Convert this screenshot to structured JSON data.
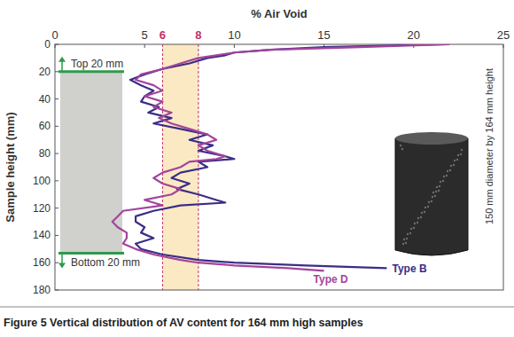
{
  "chart_data": {
    "type": "line",
    "orientation": "horizontal",
    "x_label": "Sample height (mm)",
    "y_label": "% Air Void",
    "caption": "Figure 5 Vertical distribution of AV content for 164 mm high samples",
    "x": [
      0,
      2,
      4,
      6,
      8,
      10,
      14,
      18,
      22,
      26,
      30,
      34,
      38,
      42,
      46,
      50,
      54,
      58,
      62,
      66,
      70,
      74,
      78,
      82,
      84,
      86,
      90,
      94,
      98,
      102,
      106,
      110,
      114,
      116,
      118,
      122,
      126,
      130,
      134,
      138,
      142,
      146,
      150,
      154,
      158,
      160,
      162,
      164,
      166
    ],
    "series": [
      {
        "name": "Type B",
        "color": "#3b2d86",
        "values": [
          21.7,
          15,
          12,
          10,
          9.5,
          8.5,
          7.5,
          6,
          5,
          4.2,
          4.8,
          5.5,
          5,
          4.8,
          5.8,
          5.2,
          6.5,
          5.5,
          7,
          8.5,
          7.5,
          8.8,
          8,
          9.5,
          10,
          8,
          8.5,
          7,
          6.5,
          7.5,
          6.8,
          8,
          9,
          9.5,
          7,
          5.5,
          4.5,
          4.5,
          5,
          4.8,
          5.5,
          4.5,
          4.8,
          6,
          8,
          10,
          14,
          18.5,
          null
        ]
      },
      {
        "name": "Type D",
        "color": "#a3449c",
        "values": [
          22,
          17,
          12,
          10,
          9,
          8,
          7,
          6,
          4.8,
          4.5,
          5.5,
          6,
          5,
          6,
          5.5,
          6.5,
          5.8,
          6.5,
          7.5,
          8.5,
          9,
          8,
          8.5,
          9.5,
          9,
          7.5,
          7,
          6,
          5.5,
          6,
          7,
          6.5,
          5,
          5.5,
          6,
          3.8,
          3.5,
          3.2,
          3.5,
          4,
          4,
          3.8,
          4.5,
          5.5,
          7,
          8,
          10,
          13,
          15
        ]
      }
    ],
    "xlim": [
      0,
      180
    ],
    "xticks": [
      0,
      20,
      40,
      60,
      80,
      100,
      120,
      140,
      160,
      180
    ],
    "ylim": [
      0,
      25
    ],
    "yticks": [
      0,
      5,
      10,
      15,
      20,
      25
    ],
    "reference_lines": [
      6,
      8
    ],
    "annotations": [
      {
        "text": "Top 20 mm",
        "x": 20
      },
      {
        "text": "Bottom 20 mm",
        "x": 153
      },
      {
        "text": "150 mm diameter by 164 mm height"
      }
    ],
    "grid": false
  }
}
